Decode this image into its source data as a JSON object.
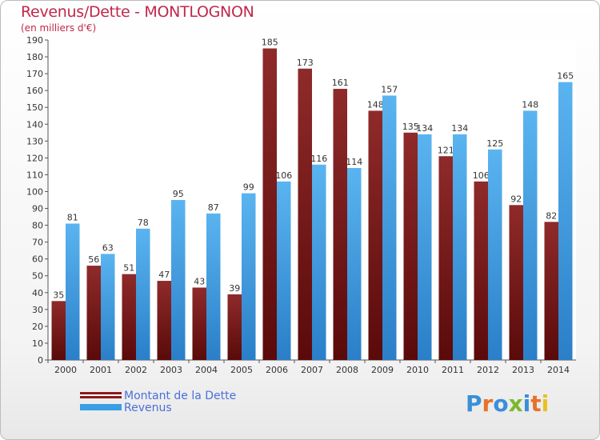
{
  "header": {
    "title": "Revenus/Dette - MONTLOGNON",
    "subtitle": "(en milliers d'€)"
  },
  "legend": {
    "items": [
      {
        "label": "Montant de la Dette",
        "color": "#8b1a1a"
      },
      {
        "label": "Revenus",
        "color": "#3a9ee4"
      }
    ]
  },
  "logo": {
    "text": "Proxiti"
  },
  "chart_data": {
    "type": "bar",
    "categories": [
      "2000",
      "2001",
      "2002",
      "2003",
      "2004",
      "2005",
      "2006",
      "2007",
      "2008",
      "2009",
      "2010",
      "2011",
      "2012",
      "2013",
      "2014"
    ],
    "series": [
      {
        "name": "Montant de la Dette",
        "color": "#8b1a1a",
        "values": [
          35,
          56,
          51,
          47,
          43,
          39,
          185,
          173,
          161,
          148,
          135,
          121,
          106,
          92,
          82
        ],
        "labels": [
          "35",
          "56",
          "51",
          "47",
          "43",
          "39",
          "185",
          "173",
          "161",
          "148",
          "135",
          "121",
          "106",
          "92",
          "82"
        ]
      },
      {
        "name": "Revenus",
        "color": "#3a9ee4",
        "values": [
          81,
          63,
          78,
          95,
          87,
          99,
          106,
          116,
          114,
          157,
          134,
          134,
          125,
          148,
          165
        ],
        "labels": [
          "81",
          "63",
          "78",
          "95",
          "87",
          "99",
          "106",
          "116",
          "114",
          "157",
          "134",
          "134",
          "125",
          "148",
          "165"
        ]
      }
    ],
    "ylim": [
      0,
      190
    ],
    "yticks": [
      "0",
      "10",
      "20",
      "30",
      "40",
      "50",
      "60",
      "70",
      "80",
      "90",
      "100",
      "110",
      "120",
      "130",
      "140",
      "150",
      "160",
      "170",
      "180",
      "190"
    ],
    "grid": false,
    "legend_position": "bottom-left"
  }
}
